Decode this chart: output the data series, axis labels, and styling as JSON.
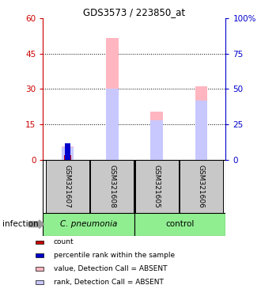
{
  "title": "GDS3573 / 223850_at",
  "samples": [
    "GSM321607",
    "GSM321608",
    "GSM321605",
    "GSM321606"
  ],
  "value_absent": [
    5.5,
    51.5,
    20.5,
    31.0
  ],
  "rank_absent_pct": [
    8.5,
    50.0,
    27.5,
    42.0
  ],
  "count_values": [
    2.0,
    0,
    0,
    0
  ],
  "percentile_rank_pct": [
    11.5,
    0,
    0,
    0
  ],
  "ylim_left": [
    0,
    60
  ],
  "ylim_right": [
    0,
    100
  ],
  "yticks_left": [
    0,
    15,
    30,
    45,
    60
  ],
  "yticks_right": [
    0,
    25,
    50,
    75,
    100
  ],
  "ytick_labels_left": [
    "0",
    "15",
    "30",
    "45",
    "60"
  ],
  "ytick_labels_right": [
    "0",
    "25",
    "50",
    "75",
    "100%"
  ],
  "color_value_absent": "#FFB6C1",
  "color_rank_absent": "#C8C8FF",
  "color_count": "#CC0000",
  "color_percentile": "#0000CC",
  "legend_items": [
    {
      "label": "count",
      "color": "#CC0000"
    },
    {
      "label": "percentile rank within the sample",
      "color": "#0000CC"
    },
    {
      "label": "value, Detection Call = ABSENT",
      "color": "#FFB6C1"
    },
    {
      "label": "rank, Detection Call = ABSENT",
      "color": "#C8C8FF"
    }
  ],
  "sample_box_color": "#C8C8C8",
  "group1_color": "#90EE90",
  "group2_color": "#90EE90"
}
